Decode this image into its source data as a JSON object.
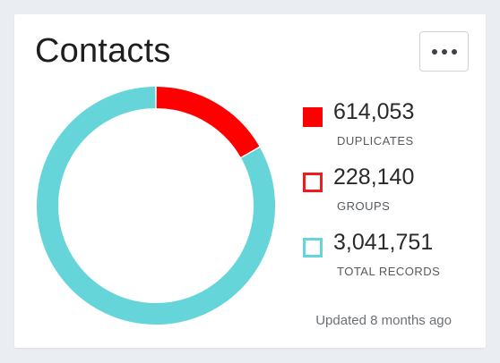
{
  "card": {
    "title": "Contacts",
    "menu_icon": "more-horizontal-icon",
    "updated_text": "Updated 8 months ago"
  },
  "legend": [
    {
      "value": "614,053",
      "label": "DUPLICATES",
      "swatch": "filled",
      "color": "#ff0000"
    },
    {
      "value": "228,140",
      "label": "GROUPS",
      "swatch": "outline",
      "color": "#ee1c1c"
    },
    {
      "value": "3,041,751",
      "label": "TOTAL RECORDS",
      "swatch": "outline",
      "color": "#66d5d9"
    }
  ],
  "chart_data": {
    "type": "pie",
    "variant": "donut",
    "series": [
      {
        "name": "DUPLICATES",
        "value": 614053,
        "color": "#ff0000"
      },
      {
        "name": "TOTAL RECORDS",
        "value": 3041751,
        "color": "#66d5d9"
      }
    ]
  },
  "colors": {
    "background": "#eaedf1",
    "card": "#ffffff",
    "duplicates": "#ff0000",
    "total": "#66d5d9"
  }
}
